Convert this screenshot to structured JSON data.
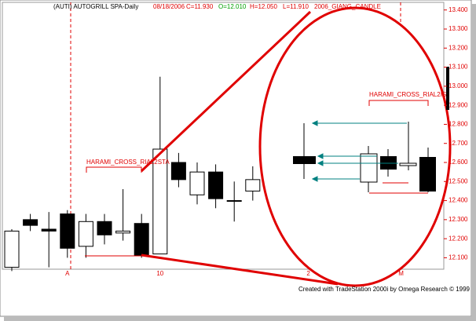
{
  "chart_data": {
    "type": "candlestick",
    "header": {
      "symbol": "(AUTI) AUTOGRILL SPA-Daily",
      "date": "08/18/2006",
      "close": "C=11.930",
      "open": "O=12.010",
      "high": "H=12.050",
      "low": "L=11.910",
      "indicator": "2006_GIANG_CANDLE"
    },
    "annotations": [
      "HARAMI_CROSS_RIAL2STA",
      "HARAMI_CROSS_RIAL2IS"
    ],
    "footer": "Created with TradeStation 2000i by Omega Research © 1999",
    "categories": [
      null,
      null,
      null,
      "A",
      null,
      null,
      null,
      null,
      "10",
      null,
      null,
      null,
      null,
      null,
      null,
      null,
      "2",
      null,
      null,
      null,
      null,
      "M"
    ],
    "open": [
      12.05,
      12.3,
      12.25,
      12.33,
      12.16,
      12.29,
      12.23,
      12.28,
      12.12,
      12.6,
      12.43,
      12.55,
      12.4,
      12.45,
      null,
      null,
      null,
      null,
      null,
      null,
      null,
      null
    ],
    "high": [
      12.25,
      12.33,
      12.34,
      12.35,
      12.33,
      12.33,
      12.46,
      12.33,
      13.05,
      12.65,
      12.6,
      12.59,
      12.5,
      12.58,
      null,
      null,
      null,
      null,
      null,
      null,
      null,
      null
    ],
    "low": [
      12.03,
      12.24,
      12.05,
      12.1,
      12.1,
      12.17,
      12.19,
      12.1,
      12.12,
      12.47,
      12.38,
      12.36,
      12.29,
      12.4,
      null,
      null,
      null,
      null,
      null,
      null,
      null,
      null
    ],
    "close": [
      12.24,
      12.27,
      12.24,
      12.15,
      12.29,
      12.22,
      12.24,
      12.11,
      12.67,
      12.51,
      12.55,
      12.41,
      12.4,
      12.51,
      null,
      null,
      null,
      null,
      null,
      null,
      null,
      null
    ],
    "up_color": "#ffffff",
    "down_color": "#000000",
    "ylim": [
      12.04,
      13.44
    ],
    "yticks": [
      {
        "value": 12.1,
        "label": "12.100"
      },
      {
        "value": 12.2,
        "label": "12.200"
      },
      {
        "value": 12.3,
        "label": "12.300"
      },
      {
        "value": 12.4,
        "label": "12.400"
      },
      {
        "value": 12.5,
        "label": "12.500"
      },
      {
        "value": 12.6,
        "label": "12.600"
      },
      {
        "value": 12.7,
        "label": "12.700"
      },
      {
        "value": 12.8,
        "label": "12.800"
      },
      {
        "value": 12.9,
        "label": "12.900"
      },
      {
        "value": 13.0,
        "label": "13.000"
      },
      {
        "value": 13.1,
        "label": "13.100"
      },
      {
        "value": 13.2,
        "label": "13.200"
      },
      {
        "value": 13.3,
        "label": "13.300"
      },
      {
        "value": 13.4,
        "label": "13.400"
      }
    ]
  }
}
